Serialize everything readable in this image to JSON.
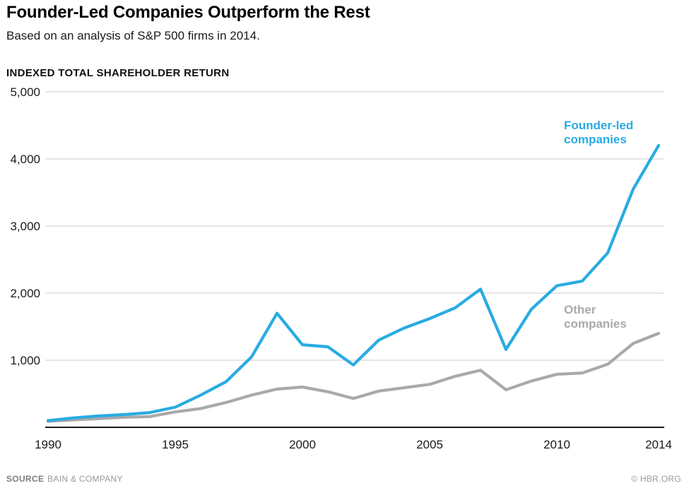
{
  "header": {
    "title": "Founder-Led Companies Outperform the Rest",
    "subtitle": "Based on an analysis of S&P 500 firms in 2014."
  },
  "chart_data": {
    "type": "line",
    "title": "Founder-Led Companies Outperform the Rest",
    "subtitle": "Based on an analysis of S&P 500 firms in 2014.",
    "axis_title": "INDEXED TOTAL SHAREHOLDER RETURN",
    "x": [
      1990,
      1991,
      1992,
      1993,
      1994,
      1995,
      1996,
      1997,
      1998,
      1999,
      2000,
      2001,
      2002,
      2003,
      2004,
      2005,
      2006,
      2007,
      2008,
      2009,
      2010,
      2011,
      2012,
      2013,
      2014
    ],
    "series": [
      {
        "name": "Founder-led companies",
        "label_lines": [
          "Founder-led",
          "companies"
        ],
        "color": "#29ABE2",
        "values": [
          100,
          140,
          170,
          190,
          220,
          300,
          480,
          680,
          1050,
          1700,
          1230,
          1200,
          930,
          1300,
          1480,
          1620,
          1780,
          2060,
          1160,
          1760,
          2110,
          2180,
          2600,
          3550,
          4200
        ]
      },
      {
        "name": "Other companies",
        "label_lines": [
          "Other",
          "companies"
        ],
        "color": "#A9A9A9",
        "values": [
          90,
          110,
          130,
          150,
          160,
          230,
          280,
          370,
          480,
          570,
          600,
          530,
          430,
          540,
          590,
          640,
          760,
          850,
          560,
          690,
          790,
          810,
          940,
          1250,
          1400
        ]
      }
    ],
    "ylim": [
      0,
      5000
    ],
    "yticks": [
      {
        "value": 1000,
        "label": "1,000"
      },
      {
        "value": 2000,
        "label": "2,000"
      },
      {
        "value": 3000,
        "label": "3,000"
      },
      {
        "value": 4000,
        "label": "4,000"
      },
      {
        "value": 5000,
        "label": "5,000"
      }
    ],
    "xticks": [
      {
        "value": 1990,
        "label": "1990"
      },
      {
        "value": 1995,
        "label": "1995"
      },
      {
        "value": 2000,
        "label": "2000"
      },
      {
        "value": 2005,
        "label": "2005"
      },
      {
        "value": 2010,
        "label": "2010"
      },
      {
        "value": 2014,
        "label": "2014"
      }
    ],
    "grid": "horizontal",
    "legend_position": "inline-right",
    "grid_color": "#D8D8D8",
    "axis_color": "#1A1A1A"
  },
  "footer": {
    "source_label": "SOURCE",
    "source_value": "BAIN & COMPANY",
    "credit": "© HBR.ORG"
  }
}
